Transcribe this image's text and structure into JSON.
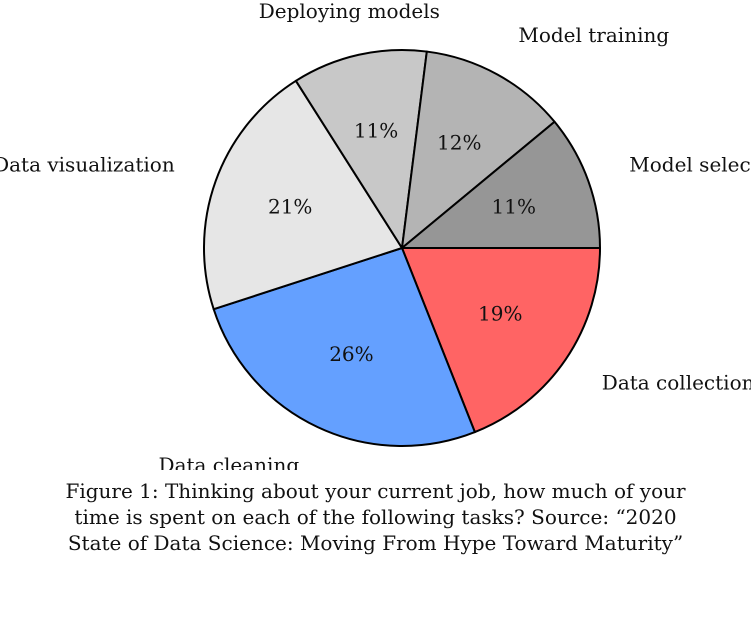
{
  "chart_data": {
    "type": "pie",
    "categories": [
      "Data collection",
      "Data cleaning",
      "Data visualization",
      "Deploying models",
      "Model training",
      "Model selection"
    ],
    "values": [
      19,
      26,
      21,
      11,
      12,
      11
    ],
    "value_labels": [
      "19%",
      "26%",
      "21%",
      "11%",
      "12%",
      "11%"
    ],
    "colors": [
      "#ff6464",
      "#64a0ff",
      "#e6e6e6",
      "#c8c8c8",
      "#b4b4b4",
      "#969696"
    ],
    "start_angle_deg": 0,
    "direction": "clockwise",
    "legend": "none",
    "caption": "Figure 1: Thinking about your current job, how much of your time is spent on each of the following tasks? Source: “2020 State of Data Science: Moving From Hype Toward Maturity”"
  }
}
